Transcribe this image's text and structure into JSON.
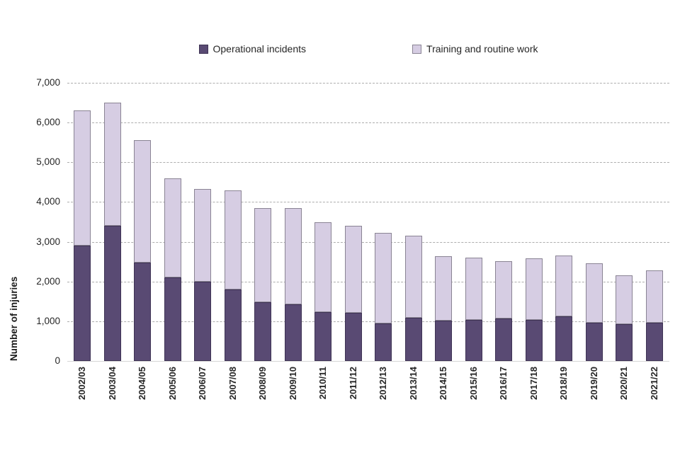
{
  "legend": {
    "items": [
      {
        "label": "Operational incidents",
        "swatch": "operational-swatch"
      },
      {
        "label": "Training and routine work",
        "swatch": "training-swatch"
      }
    ]
  },
  "y_axis": {
    "title": "Number of injuries",
    "tick_values": [
      0,
      1000,
      2000,
      3000,
      4000,
      5000,
      6000,
      7000
    ],
    "tick_labels": [
      "0",
      "1,000",
      "2,000",
      "3,000",
      "4,000",
      "5,000",
      "6,000",
      "7,000"
    ]
  },
  "colors": {
    "operational_fill": "#594a73",
    "operational_border": "#3e3354",
    "training_fill": "#d6cde3",
    "training_border": "#8a8494",
    "gridline": "#adadad",
    "baseline": "#d6d6d6",
    "text": "#262626"
  },
  "chart_data": {
    "type": "bar",
    "stacked": true,
    "title": "",
    "xlabel": "",
    "ylabel": "Number of injuries",
    "ylim": [
      0,
      7000
    ],
    "grid": "horizontal-dashed",
    "legend_position": "top-center",
    "categories": [
      "2002/03",
      "2003/04",
      "2004/05",
      "2005/06",
      "2006/07",
      "2007/08",
      "2008/09",
      "2009/10",
      "2010/11",
      "2011/12",
      "2012/13",
      "2013/14",
      "2014/15",
      "2015/16",
      "2016/17",
      "2017/18",
      "2018/19",
      "2019/20",
      "2020/21",
      "2021/22"
    ],
    "series": [
      {
        "name": "Operational incidents",
        "color": "#594a73",
        "values": [
          2900,
          3400,
          2480,
          2100,
          2000,
          1800,
          1480,
          1430,
          1230,
          1210,
          950,
          1090,
          1020,
          1040,
          1070,
          1040,
          1120,
          960,
          930,
          960
        ]
      },
      {
        "name": "Training and routine work",
        "color": "#d6cde3",
        "values": [
          3400,
          3100,
          3080,
          2500,
          2320,
          2490,
          2370,
          2420,
          2270,
          2190,
          2280,
          2060,
          1610,
          1560,
          1450,
          1540,
          1530,
          1500,
          1230,
          1320
        ]
      }
    ],
    "totals": [
      6300,
      6500,
      5560,
      4600,
      4320,
      4290,
      3850,
      3850,
      3500,
      3400,
      3230,
      3150,
      2630,
      2600,
      2520,
      2580,
      2650,
      2460,
      2160,
      2280
    ]
  }
}
